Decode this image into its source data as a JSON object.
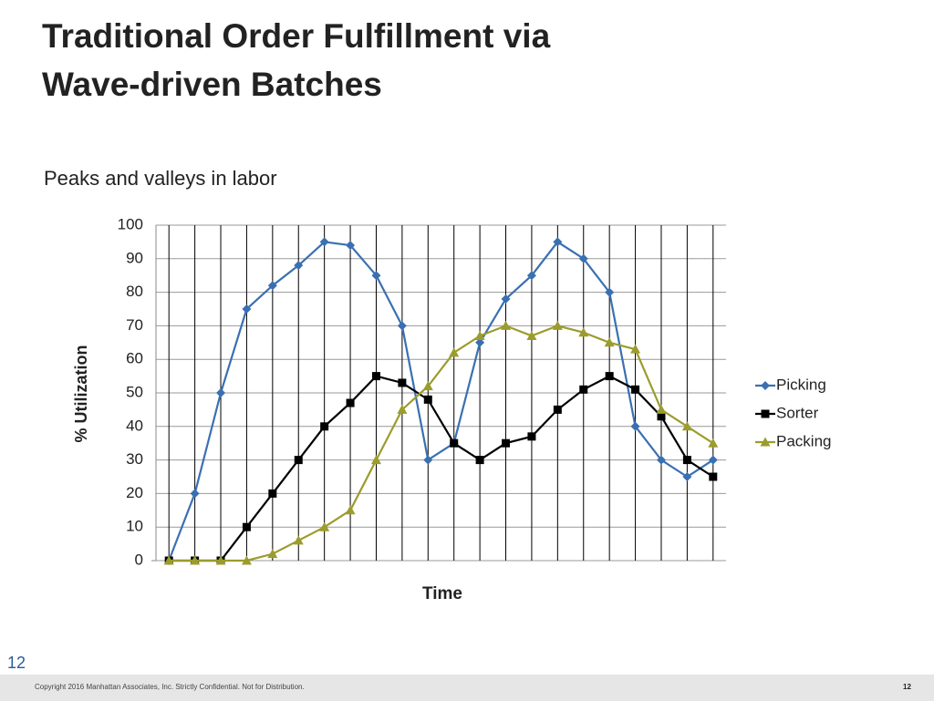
{
  "slide": {
    "title_lines": [
      "Traditional Order Fulfillment via",
      "Wave-driven Batches"
    ],
    "subtitle": "Peaks and valleys in labor",
    "slide_number": "12",
    "footer": "Copyright 2016 Manhattan Associates, Inc. Strictly Confidential. Not for Distribution.",
    "footer_page": "12"
  },
  "chart_data": {
    "type": "line",
    "x_label": "Time",
    "y_label": "% Utilization",
    "categories": [
      null,
      null,
      null,
      null,
      null,
      null,
      null,
      null,
      null,
      null,
      null,
      null,
      null,
      null,
      null,
      null,
      null,
      null,
      null,
      null,
      null,
      null
    ],
    "series": [
      {
        "name": "Picking",
        "color": "#3a70b2",
        "marker": "diamond",
        "values": [
          0,
          20,
          50,
          75,
          82,
          88,
          95,
          94,
          85,
          70,
          30,
          35,
          65,
          78,
          85,
          95,
          90,
          80,
          40,
          30,
          25,
          30
        ]
      },
      {
        "name": "Sorter",
        "color": "#000000",
        "marker": "square",
        "values": [
          0,
          0,
          0,
          10,
          20,
          30,
          40,
          47,
          55,
          53,
          48,
          35,
          30,
          35,
          37,
          45,
          51,
          55,
          51,
          43,
          30,
          25
        ]
      },
      {
        "name": "Packing",
        "color": "#9c9c2c",
        "marker": "triangle",
        "values": [
          0,
          0,
          0,
          0,
          2,
          6,
          10,
          15,
          30,
          45,
          52,
          62,
          67,
          70,
          67,
          70,
          68,
          65,
          63,
          45,
          40,
          35
        ]
      }
    ],
    "ylim": [
      0,
      100
    ],
    "yticks": [
      0,
      10,
      20,
      30,
      40,
      50,
      60,
      70,
      80,
      90,
      100
    ],
    "grid": true,
    "xgrid": true,
    "legend": "right"
  }
}
